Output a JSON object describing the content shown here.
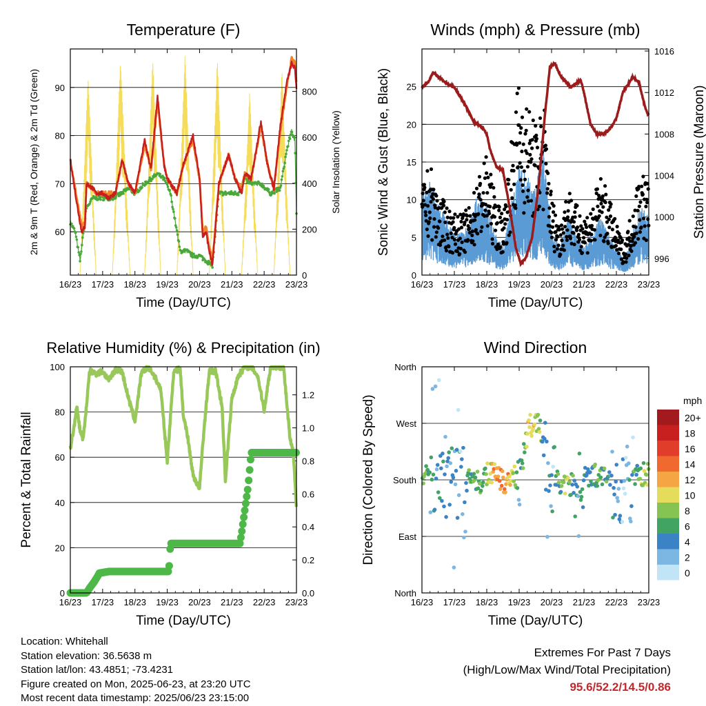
{
  "colors": {
    "temp2m": "#c81e1e",
    "temp9m": "#f0822a",
    "dewpoint": "#4aa83a",
    "solar": "#f5dc5a",
    "wind": "#5b9bd5",
    "gust": "#000000",
    "pressure": "#9b1c1c",
    "rh": "#98c85a",
    "precip": "#4db848",
    "extremes": "#c0282d"
  },
  "footer": {
    "location": "Location: Whitehall",
    "elevation": "Station elevation: 36.5638 m",
    "latlon": "Station lat/lon: 43.4851; -73.4231",
    "created": "Figure created on Mon, 2025-06-23, at 23:20 UTC",
    "recent": "Most recent data timestamp: 2025/06/23 23:15:00",
    "extremes_title": "Extremes For Past 7 Days",
    "extremes_subtitle": "(High/Low/Max Wind/Total Precipitation)",
    "extremes_values": "95.6/52.2/14.5/0.86"
  },
  "chart_data": [
    {
      "type": "line",
      "title": "Temperature (F)",
      "xlabel": "Time (Day/UTC)",
      "ylabel": "2m & 9m T (Red, Orange) & 2m Td (Green)",
      "y2label": "Solar Insolation (Yellow)",
      "x_ticks": [
        "16/23",
        "17/23",
        "18/23",
        "19/23",
        "20/23",
        "21/23",
        "22/23",
        "23/23"
      ],
      "xlim": [
        0,
        7
      ],
      "ylim": [
        51,
        98
      ],
      "y_ticks": [
        60,
        70,
        80,
        90
      ],
      "y2lim": [
        0,
        985
      ],
      "y2_ticks": [
        0,
        200,
        400,
        600,
        800
      ],
      "grid": true,
      "series": [
        {
          "name": "2m T",
          "axis": "y",
          "x": [
            0,
            0.2,
            0.35,
            0.45,
            0.5,
            0.7,
            0.8,
            1,
            1.2,
            1.4,
            1.6,
            1.8,
            2,
            2.3,
            2.5,
            2.7,
            2.9,
            3,
            3.3,
            3.5,
            3.8,
            4,
            4.1,
            4.2,
            4.3,
            4.4,
            4.6,
            4.9,
            5.1,
            5.3,
            5.4,
            5.6,
            5.9,
            6.1,
            6.3,
            6.5,
            6.7,
            6.85,
            6.95,
            7
          ],
          "y": [
            75,
            66,
            60,
            61,
            70,
            69,
            68,
            68,
            67,
            68,
            75,
            70,
            68,
            79,
            73,
            88,
            74,
            71,
            68,
            74,
            80,
            71,
            59,
            60,
            56,
            53,
            70,
            76,
            71,
            68,
            72,
            71,
            83,
            74,
            69,
            82,
            91,
            95,
            94,
            90
          ]
        },
        {
          "name": "9m T",
          "axis": "y",
          "x": [
            0,
            0.2,
            0.35,
            0.45,
            0.5,
            0.7,
            0.8,
            1,
            1.2,
            1.4,
            1.6,
            1.8,
            2,
            2.3,
            2.5,
            2.7,
            2.9,
            3,
            3.3,
            3.5,
            3.8,
            4,
            4.1,
            4.2,
            4.3,
            4.4,
            4.6,
            4.9,
            5.1,
            5.3,
            5.4,
            5.6,
            5.9,
            6.1,
            6.3,
            6.5,
            6.7,
            6.85,
            6.95,
            7
          ],
          "y": [
            75,
            67,
            61,
            62,
            70,
            69,
            68,
            68,
            68,
            68,
            75,
            70,
            68,
            78,
            73,
            87,
            74,
            71,
            68,
            74,
            79,
            71,
            60,
            61,
            57,
            54,
            70,
            76,
            71,
            69,
            72,
            71,
            82,
            74,
            69,
            81,
            90,
            96,
            95,
            91
          ]
        },
        {
          "name": "2m Td",
          "axis": "y",
          "x": [
            0,
            0.15,
            0.3,
            0.5,
            0.7,
            1,
            1.3,
            1.6,
            1.8,
            2,
            2.3,
            2.5,
            2.7,
            2.9,
            3.1,
            3.4,
            3.6,
            3.8,
            4,
            4.2,
            4.4,
            4.6,
            4.9,
            5.2,
            5.4,
            5.6,
            5.9,
            6.2,
            6.5,
            6.7,
            6.85,
            6.95,
            7
          ],
          "y": [
            62,
            60,
            54,
            65,
            67,
            67,
            67,
            68,
            69,
            68,
            70,
            71,
            72,
            71,
            68,
            56,
            56,
            55,
            55,
            54,
            53,
            68,
            68,
            68,
            71,
            70,
            70,
            68,
            69,
            77,
            81,
            79,
            64
          ]
        },
        {
          "name": "Solar",
          "axis": "y2",
          "x": [
            0,
            0.2,
            0.3,
            0.55,
            0.8,
            1.2,
            1.3,
            1.55,
            1.85,
            2.1,
            2.3,
            2.55,
            2.8,
            3.1,
            3.3,
            3.55,
            3.8,
            4.1,
            4.3,
            4.55,
            4.8,
            5.1,
            5.3,
            5.55,
            5.8,
            6.1,
            6.3,
            6.55,
            6.8,
            7
          ],
          "y": [
            0,
            0,
            0,
            880,
            0,
            0,
            0,
            950,
            0,
            0,
            0,
            960,
            0,
            0,
            0,
            975,
            0,
            0,
            0,
            950,
            0,
            0,
            0,
            800,
            0,
            0,
            0,
            900,
            0,
            0
          ]
        }
      ]
    },
    {
      "type": "scatter",
      "title": "Winds (mph) & Pressure (mb)",
      "xlabel": "Time (Day/UTC)",
      "ylabel": "Sonic Wind & Gust (Blue, Black)",
      "y2label": "Station Pressure (Maroon)",
      "x_ticks": [
        "16/23",
        "17/23",
        "18/23",
        "19/23",
        "20/23",
        "21/23",
        "22/23",
        "23/23"
      ],
      "xlim": [
        0,
        7
      ],
      "ylim": [
        0,
        30
      ],
      "y_ticks": [
        0,
        5,
        10,
        15,
        20,
        25
      ],
      "y2lim": [
        994.4,
        1016.2
      ],
      "y2_ticks": [
        996,
        1000,
        1004,
        1008,
        1012,
        1016
      ],
      "grid": true,
      "series": [
        {
          "name": "Sonic Wind",
          "type": "line",
          "x": [
            0,
            0.25,
            0.5,
            0.75,
            1,
            1.25,
            1.5,
            1.75,
            2,
            2.25,
            2.5,
            2.75,
            3,
            3.25,
            3.5,
            3.75,
            4,
            4.25,
            4.5,
            4.75,
            5,
            5.25,
            5.5,
            5.75,
            6,
            6.25,
            6.5,
            6.75,
            7
          ],
          "y": [
            6,
            7,
            5,
            4,
            3,
            3,
            4,
            6,
            5,
            3,
            2,
            5,
            8,
            7,
            6,
            9,
            3,
            2,
            4,
            3,
            2,
            3,
            4,
            3,
            2,
            1,
            3,
            5,
            4
          ]
        },
        {
          "name": "Gust",
          "type": "scatter",
          "x": [
            0,
            0.25,
            0.5,
            0.75,
            1,
            1.25,
            1.5,
            1.75,
            2,
            2.25,
            2.5,
            2.75,
            3,
            3.25,
            3.5,
            3.75,
            4,
            4.25,
            4.5,
            4.75,
            5,
            5.25,
            5.5,
            5.75,
            6,
            6.25,
            6.5,
            6.75,
            7
          ],
          "y": [
            9,
            11,
            8,
            7,
            6,
            6,
            7,
            10,
            12,
            8,
            6,
            13,
            20,
            17,
            15,
            18,
            8,
            5,
            9,
            7,
            6,
            7,
            10,
            8,
            5,
            3,
            7,
            11,
            9
          ]
        },
        {
          "name": "Pressure",
          "type": "line",
          "axis": "y2",
          "x": [
            0,
            0.2,
            0.35,
            0.5,
            0.8,
            1,
            1.3,
            1.6,
            1.9,
            2,
            2.1,
            2.3,
            2.5,
            2.7,
            2.9,
            3.05,
            3.2,
            3.4,
            3.6,
            3.8,
            3.95,
            4.1,
            4.3,
            4.6,
            4.9,
            5,
            5.2,
            5.4,
            5.6,
            5.8,
            6,
            6.2,
            6.5,
            6.7,
            6.85,
            6.95,
            7
          ],
          "y": [
            1012.5,
            1013,
            1014,
            1013.5,
            1012.8,
            1012.5,
            1011,
            1009.2,
            1008.5,
            1008,
            1006.5,
            1004.8,
            1004.5,
            1001,
            997,
            995.5,
            996,
            998,
            1003,
            1010,
            1014.5,
            1014.8,
            1013.5,
            1012.5,
            1013.2,
            1012,
            1009,
            1008,
            1008,
            1008.5,
            1009.5,
            1012,
            1013.5,
            1013,
            1011,
            1010,
            1009.8
          ]
        }
      ]
    },
    {
      "type": "line",
      "title": "Relative Humidity (%) & Precipitation (in)",
      "xlabel": "Time (Day/UTC)",
      "ylabel": "Percent & Total Rainfall",
      "x_ticks": [
        "16/23",
        "17/23",
        "18/23",
        "19/23",
        "20/23",
        "21/23",
        "22/23",
        "23/23"
      ],
      "xlim": [
        0,
        7
      ],
      "ylim": [
        0,
        100
      ],
      "y_ticks": [
        0,
        20,
        40,
        60,
        80,
        100
      ],
      "y2lim": [
        0,
        1.37
      ],
      "y2_ticks": [
        "0.0",
        "0.2",
        "0.4",
        "0.6",
        "0.8",
        "1.0",
        "1.2"
      ],
      "grid": true,
      "series": [
        {
          "name": "RH",
          "axis": "y",
          "x": [
            0,
            0.1,
            0.2,
            0.3,
            0.4,
            0.6,
            0.8,
            1,
            1.2,
            1.4,
            1.6,
            1.8,
            2,
            2.2,
            2.4,
            2.6,
            2.8,
            3,
            3.2,
            3.4,
            3.5,
            3.6,
            3.8,
            4,
            4.1,
            4.3,
            4.5,
            4.7,
            4.8,
            5,
            5.2,
            5.4,
            5.6,
            5.8,
            6,
            6.2,
            6.4,
            6.6,
            6.8,
            6.9,
            7
          ],
          "y": [
            64,
            72,
            82,
            72,
            68,
            98,
            97,
            98,
            94,
            99,
            98,
            86,
            76,
            97,
            100,
            96,
            90,
            58,
            98,
            99,
            78,
            72,
            52,
            46,
            66,
            98,
            98,
            82,
            50,
            86,
            96,
            100,
            100,
            96,
            81,
            100,
            100,
            100,
            68,
            62,
            38
          ]
        },
        {
          "name": "Precip",
          "axis": "y2",
          "x": [
            0,
            0.5,
            0.6,
            0.75,
            0.9,
            1.2,
            2,
            3.05,
            3.1,
            4.5,
            5.25,
            5.3,
            5.4,
            5.5,
            5.6,
            6,
            7
          ],
          "y": [
            0,
            0,
            0.03,
            0.07,
            0.12,
            0.13,
            0.13,
            0.13,
            0.3,
            0.3,
            0.3,
            0.36,
            0.5,
            0.64,
            0.85,
            0.85,
            0.85
          ]
        }
      ]
    },
    {
      "type": "scatter",
      "title": "Wind Direction",
      "xlabel": "Time (Day/UTC)",
      "ylabel": "Direction (Colored By Speed)",
      "x_ticks": [
        "16/23",
        "17/23",
        "18/23",
        "19/23",
        "20/23",
        "21/23",
        "22/23",
        "23/23"
      ],
      "xlim": [
        0,
        7
      ],
      "ylim": [
        0,
        360
      ],
      "y_ticks": [
        "North",
        "East",
        "South",
        "West",
        "North"
      ],
      "grid": true,
      "legend": {
        "title": "mph",
        "labels": [
          "20+",
          "18",
          "16",
          "14",
          "12",
          "10",
          "8",
          "6",
          "4",
          "2",
          "0"
        ],
        "colors": [
          "#a21a1e",
          "#c8201f",
          "#e03d2a",
          "#f06a30",
          "#f5a543",
          "#e4dc5a",
          "#85c352",
          "#41a462",
          "#3b83c4",
          "#7cb7e4",
          "#c1e4f6"
        ]
      },
      "series": [
        {
          "name": "Direction",
          "x": [
            0.2,
            0.5,
            0.8,
            1,
            1.2,
            1.5,
            1.8,
            2,
            2.2,
            2.5,
            2.8,
            3,
            3.3,
            3.6,
            3.9,
            4.2,
            4.5,
            4.8,
            5,
            5.2,
            5.5,
            5.8,
            6,
            6.3,
            6.6,
            6.9
          ],
          "y": [
            180,
            185,
            180,
            175,
            170,
            185,
            175,
            190,
            190,
            175,
            185,
            180,
            265,
            270,
            200,
            175,
            170,
            180,
            185,
            190,
            185,
            180,
            170,
            160,
            185,
            190
          ],
          "speed": [
            4,
            5,
            4,
            3,
            4,
            6,
            7,
            8,
            12,
            13,
            10,
            4,
            11,
            9,
            3,
            6,
            8,
            4,
            5,
            5,
            7,
            5,
            4,
            2,
            6,
            8
          ]
        }
      ]
    }
  ]
}
